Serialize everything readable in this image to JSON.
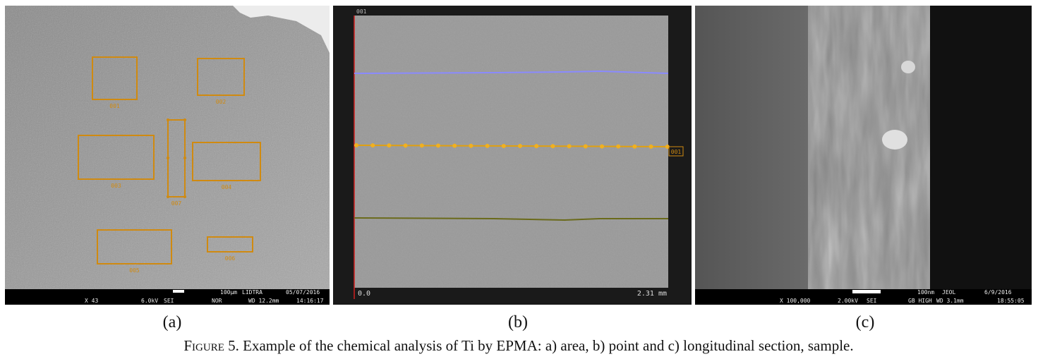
{
  "panels": [
    {
      "label": "(a)",
      "regions": [
        "001",
        "002",
        "003",
        "004",
        "005",
        "006",
        "007"
      ],
      "info_bar": {
        "scale": "100µm",
        "lab": "LIDTRA",
        "date": "05/07/2016",
        "magnification": "X 43",
        "voltage": "6.0kV",
        "detector": "SEI",
        "mode": "NOR",
        "wd": "WD 12.2mm",
        "time": "14:16:17"
      }
    },
    {
      "label": "(b)",
      "corner_label": "001",
      "line_label": "001",
      "axis_start": "0.0",
      "axis_end": "2.31 mm"
    },
    {
      "label": "(c)",
      "info_bar": {
        "scale": "100nm",
        "lab": "JEOL",
        "date": "6/9/2016",
        "magnification": "X 100,000",
        "voltage": "2.00kV",
        "detector": "SEI",
        "mode": "GB HIGH",
        "wd": "WD 3.1mm",
        "time": "18:55:05"
      }
    }
  ],
  "caption": {
    "label": "Figure 5.",
    "text": "Example of the chemical analysis of Ti by EPMA: a) area, b) point and c) longitudinal section, sample."
  }
}
